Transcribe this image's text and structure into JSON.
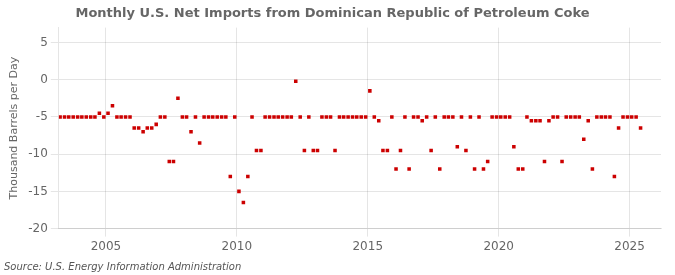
{
  "chart_data": {
    "type": "scatter",
    "title": "Monthly U.S. Net Imports from Dominican Republic of Petroleum Coke",
    "ylabel": "Thousand Barrels per Day",
    "annotations": [
      "Source: U.S. Energy Information Administration"
    ],
    "color": "#cc0000",
    "marker": "square",
    "grid": true,
    "xlim": [
      2003.2,
      2026.2
    ],
    "xticks": [
      2005,
      2010,
      2015,
      2020,
      2025
    ],
    "ylim": [
      -20,
      7
    ],
    "yticks": [
      -20,
      -15,
      -10,
      -5,
      0,
      5
    ],
    "x": [
      2003.25,
      2003.42,
      2003.58,
      2003.75,
      2003.92,
      2004.08,
      2004.25,
      2004.42,
      2004.58,
      2004.75,
      2004.92,
      2005.08,
      2005.25,
      2005.42,
      2005.58,
      2005.75,
      2005.92,
      2006.08,
      2006.25,
      2006.42,
      2006.58,
      2006.75,
      2006.92,
      2007.08,
      2007.25,
      2007.42,
      2007.58,
      2007.75,
      2007.92,
      2008.08,
      2008.25,
      2008.42,
      2008.58,
      2008.75,
      2008.92,
      2009.08,
      2009.25,
      2009.42,
      2009.58,
      2009.75,
      2009.92,
      2010.08,
      2010.25,
      2010.42,
      2010.58,
      2010.75,
      2010.92,
      2011.08,
      2011.25,
      2011.42,
      2011.58,
      2011.75,
      2011.92,
      2012.08,
      2012.25,
      2012.42,
      2012.58,
      2012.75,
      2012.92,
      2013.08,
      2013.25,
      2013.42,
      2013.58,
      2013.75,
      2013.92,
      2014.08,
      2014.25,
      2014.42,
      2014.58,
      2014.75,
      2014.92,
      2015.08,
      2015.25,
      2015.42,
      2015.58,
      2015.75,
      2015.92,
      2016.08,
      2016.25,
      2016.42,
      2016.58,
      2016.75,
      2016.92,
      2017.08,
      2017.25,
      2017.42,
      2017.58,
      2017.75,
      2017.92,
      2018.08,
      2018.25,
      2018.42,
      2018.58,
      2018.75,
      2018.92,
      2019.08,
      2019.25,
      2019.42,
      2019.58,
      2019.75,
      2019.92,
      2020.08,
      2020.25,
      2020.42,
      2020.58,
      2020.75,
      2020.92,
      2021.08,
      2021.25,
      2021.42,
      2021.58,
      2021.75,
      2021.92,
      2022.08,
      2022.25,
      2022.42,
      2022.58,
      2022.75,
      2022.92,
      2023.08,
      2023.25,
      2023.42,
      2023.58,
      2023.75,
      2023.92,
      2024.08,
      2024.25,
      2024.42,
      2024.58,
      2024.75,
      2024.92,
      2025.08,
      2025.25,
      2025.42
    ],
    "values": [
      -5.0,
      -5.0,
      -5.0,
      -5.0,
      -5.0,
      -5.0,
      -5.0,
      -5.0,
      -5.0,
      -4.5,
      -5.0,
      -4.5,
      -3.5,
      -5.0,
      -5.0,
      -5.0,
      -5.0,
      -6.5,
      -6.5,
      -7.0,
      -6.5,
      -6.5,
      -6.0,
      -5.0,
      -5.0,
      -11.0,
      -11.0,
      -2.5,
      -5.0,
      -5.0,
      -7.0,
      -5.0,
      -8.5,
      -5.0,
      -5.0,
      -5.0,
      -5.0,
      -5.0,
      -5.0,
      -13.0,
      -5.0,
      -15.0,
      -16.5,
      -13.0,
      -5.0,
      -9.5,
      -9.5,
      -5.0,
      -5.0,
      -5.0,
      -5.0,
      -5.0,
      -5.0,
      -5.0,
      -0.2,
      -5.0,
      -9.5,
      -5.0,
      -9.5,
      -9.5,
      -5.0,
      -5.0,
      -5.0,
      -9.5,
      -5.0,
      -5.0,
      -5.0,
      -5.0,
      -5.0,
      -5.0,
      -5.0,
      -1.5,
      -5.0,
      -5.5,
      -9.5,
      -9.5,
      -5.0,
      -12.0,
      -9.5,
      -5.0,
      -12.0,
      -5.0,
      -5.0,
      -5.5,
      -5.0,
      -9.5,
      -5.0,
      -12.0,
      -5.0,
      -5.0,
      -5.0,
      -9.0,
      -5.0,
      -9.5,
      -5.0,
      -12.0,
      -5.0,
      -12.0,
      -11.0,
      -5.0,
      -5.0,
      -5.0,
      -5.0,
      -5.0,
      -9.0,
      -12.0,
      -12.0,
      -5.0,
      -5.5,
      -5.5,
      -5.5,
      -11.0,
      -5.5,
      -5.0,
      -5.0,
      -11.0,
      -5.0,
      -5.0,
      -5.0,
      -5.0,
      -8.0,
      -5.5,
      -12.0,
      -5.0,
      -5.0,
      -5.0,
      -5.0,
      -13.0,
      -6.5,
      -5.0,
      -5.0,
      -5.0,
      -5.0,
      -6.5
    ]
  }
}
